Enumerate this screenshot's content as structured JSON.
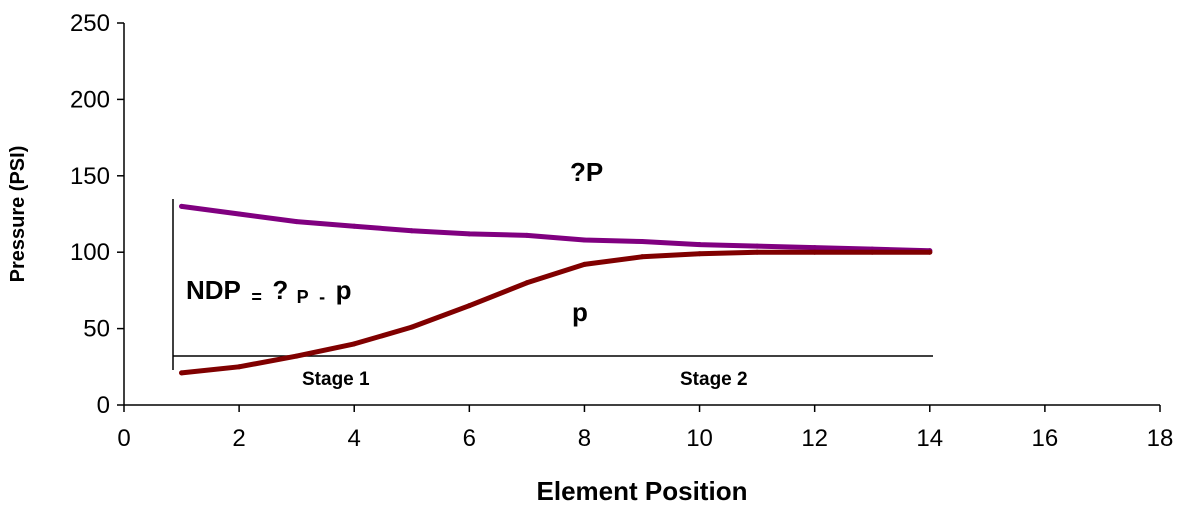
{
  "chart_data": {
    "type": "line",
    "title": "",
    "xlabel": "Element Position",
    "ylabel": "Pressure (PSI)",
    "xlim": [
      0,
      18
    ],
    "ylim": [
      0,
      250
    ],
    "xticks": [
      0,
      2,
      4,
      6,
      8,
      10,
      12,
      14,
      16,
      18
    ],
    "yticks": [
      0,
      50,
      100,
      150,
      200,
      250
    ],
    "grid": false,
    "legend": "none",
    "series": [
      {
        "key": "delta_p",
        "color": "#800080",
        "x": [
          1,
          2,
          3,
          4,
          5,
          6,
          7,
          8,
          9,
          10,
          11,
          12,
          13,
          14
        ],
        "y": [
          130,
          125,
          120,
          117,
          114,
          112,
          111,
          108,
          107,
          105,
          104,
          103,
          102,
          101
        ]
      },
      {
        "key": "p",
        "color": "#800000",
        "x": [
          1,
          2,
          3,
          4,
          5,
          6,
          7,
          8,
          9,
          10,
          11,
          12,
          13,
          14
        ],
        "y": [
          21,
          25,
          32,
          40,
          51,
          65,
          80,
          92,
          97,
          99,
          100,
          100,
          100,
          100
        ]
      }
    ],
    "annotations": {
      "delta_p_label": "?P",
      "p_label": "p",
      "ndp_main": "NDP",
      "ndp_eq": "=",
      "ndp_q": "?",
      "ndp_p_big": "P",
      "ndp_minus": "-",
      "ndp_p_small": "p",
      "stage1": "Stage 1",
      "stage2": "Stage 2"
    }
  }
}
